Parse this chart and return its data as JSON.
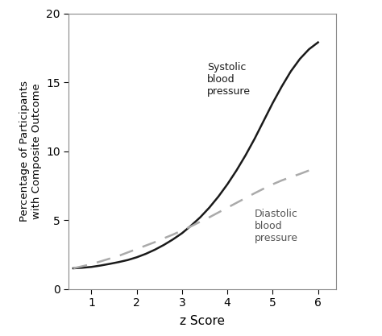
{
  "xlabel": "z Score",
  "ylabel": "Percentage of Participants\nwith Composite Outcome",
  "xlim": [
    0.5,
    6.4
  ],
  "ylim": [
    0,
    20
  ],
  "xticks": [
    1,
    2,
    3,
    4,
    5,
    6
  ],
  "yticks": [
    0,
    5,
    10,
    15,
    20
  ],
  "systolic_label": "Systolic\nblood\npressure",
  "diastolic_label": "Diastolic\nblood\npressure",
  "systolic_color": "#1a1a1a",
  "diastolic_color": "#aaaaaa",
  "background_color": "#ffffff",
  "border_color": "#aaaaaa",
  "systolic_x": [
    0.6,
    0.7,
    0.8,
    0.9,
    1.0,
    1.2,
    1.4,
    1.6,
    1.8,
    2.0,
    2.2,
    2.4,
    2.6,
    2.8,
    3.0,
    3.2,
    3.4,
    3.6,
    3.8,
    4.0,
    4.2,
    4.4,
    4.6,
    4.8,
    5.0,
    5.2,
    5.4,
    5.6,
    5.8,
    6.0
  ],
  "systolic_y": [
    1.5,
    1.52,
    1.54,
    1.57,
    1.6,
    1.7,
    1.82,
    1.95,
    2.1,
    2.3,
    2.55,
    2.85,
    3.2,
    3.6,
    4.05,
    4.6,
    5.2,
    5.9,
    6.7,
    7.6,
    8.6,
    9.7,
    10.9,
    12.2,
    13.5,
    14.7,
    15.8,
    16.7,
    17.4,
    17.9
  ],
  "diastolic_x": [
    0.6,
    0.8,
    1.0,
    1.2,
    1.4,
    1.6,
    1.8,
    2.0,
    2.2,
    2.4,
    2.6,
    2.8,
    3.0,
    3.2,
    3.4,
    3.6,
    3.8,
    4.0,
    4.2,
    4.4,
    4.6,
    4.8,
    5.0,
    5.2,
    5.4,
    5.6,
    5.8,
    6.0
  ],
  "diastolic_y": [
    1.5,
    1.65,
    1.8,
    2.0,
    2.2,
    2.4,
    2.65,
    2.9,
    3.15,
    3.4,
    3.68,
    3.95,
    4.25,
    4.55,
    4.88,
    5.2,
    5.55,
    5.9,
    6.25,
    6.6,
    6.95,
    7.28,
    7.6,
    7.88,
    8.12,
    8.35,
    8.6,
    8.85
  ],
  "systolic_ann_x": 3.55,
  "systolic_ann_y": 16.5,
  "diastolic_ann_x": 4.6,
  "diastolic_ann_y": 5.8
}
